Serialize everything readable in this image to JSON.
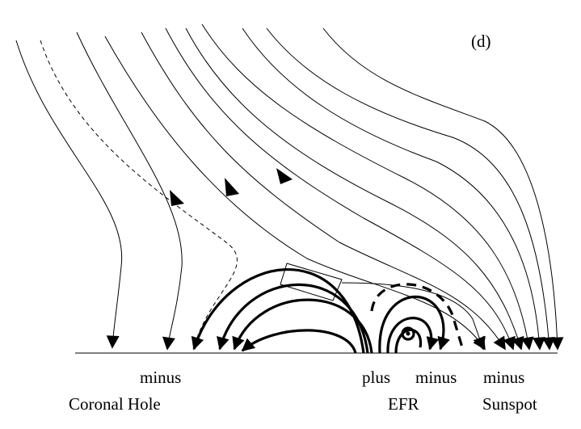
{
  "panel_label": "(d)",
  "polarity_labels": [
    "minus",
    "plus",
    "minus",
    "minus"
  ],
  "region_labels": [
    "Coronal Hole",
    "EFR",
    "Sunspot"
  ]
}
